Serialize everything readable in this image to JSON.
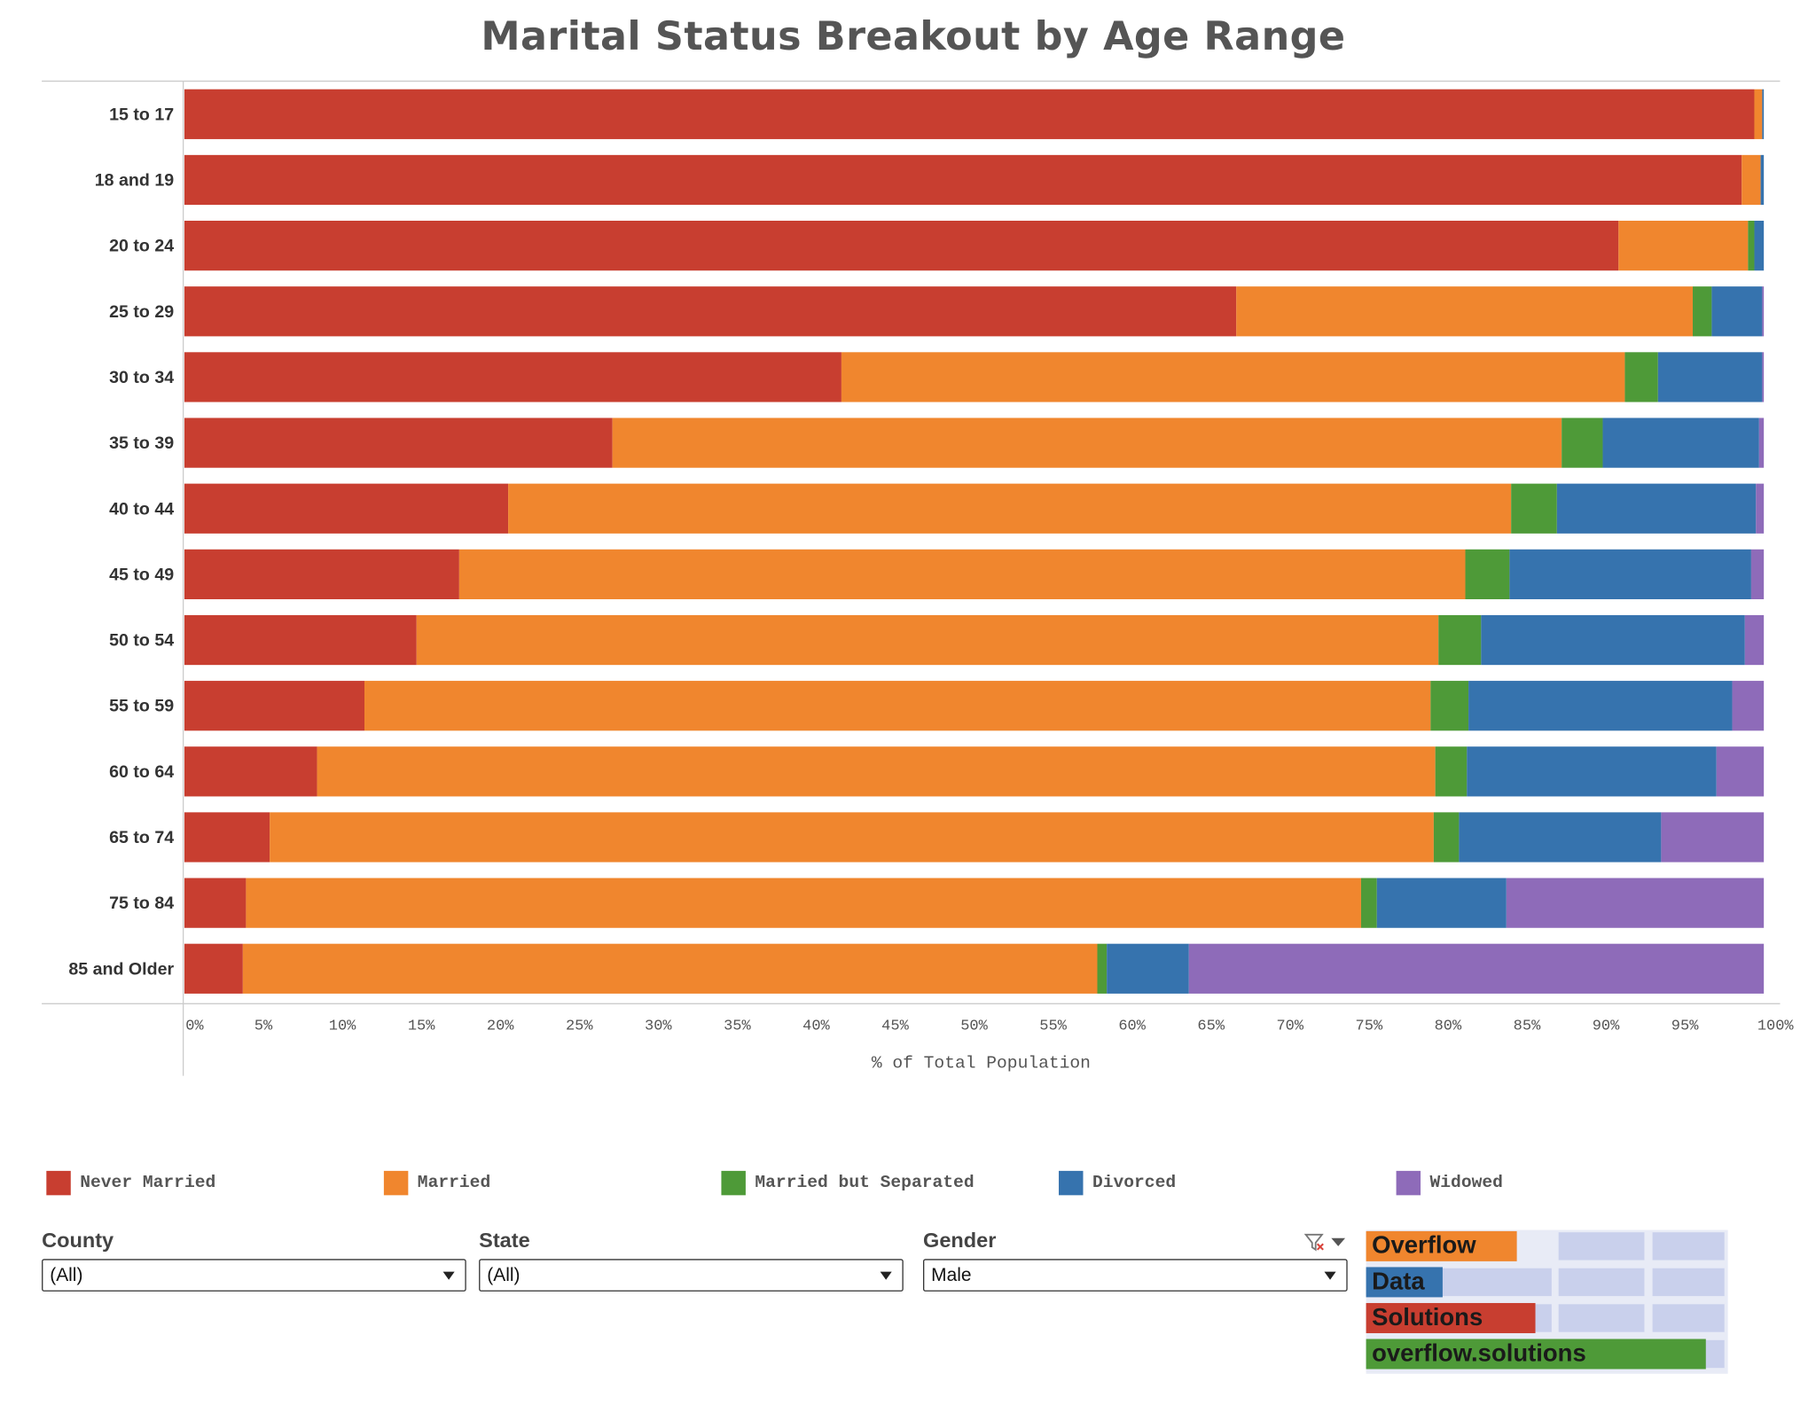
{
  "chart_data": {
    "type": "bar",
    "orientation": "horizontal",
    "stacked": true,
    "normalized": true,
    "title": "Marital Status Breakout by Age Range",
    "xlabel": "% of Total Population",
    "ylabel": "",
    "xlim": [
      0,
      100
    ],
    "xticks": [
      "0%",
      "5%",
      "10%",
      "15%",
      "20%",
      "25%",
      "30%",
      "35%",
      "40%",
      "45%",
      "50%",
      "55%",
      "60%",
      "65%",
      "70%",
      "75%",
      "80%",
      "85%",
      "90%",
      "95%",
      "100%"
    ],
    "grid": false,
    "legend_position": "bottom",
    "categories": [
      "15 to 17",
      "18 and 19",
      "20 to 24",
      "25 to 29",
      "30 to 34",
      "35 to 39",
      "40 to 44",
      "45 to 49",
      "50 to 54",
      "55 to 59",
      "60 to 64",
      "65 to 74",
      "75 to 84",
      "85 and Older"
    ],
    "series": [
      {
        "name": "Never Married",
        "color": "#c83e30",
        "values": [
          99.4,
          98.6,
          90.8,
          66.6,
          41.6,
          27.1,
          20.5,
          17.4,
          14.7,
          11.4,
          8.4,
          5.4,
          3.9,
          3.7
        ]
      },
      {
        "name": "Married",
        "color": "#f0862e",
        "values": [
          0.5,
          1.2,
          8.2,
          28.9,
          49.6,
          60.1,
          63.5,
          63.7,
          64.7,
          67.5,
          70.8,
          73.7,
          70.6,
          54.1
        ]
      },
      {
        "name": "Married but Separated",
        "color": "#4e9a38",
        "values": [
          0.0,
          0.0,
          0.4,
          1.2,
          2.1,
          2.6,
          2.9,
          2.8,
          2.7,
          2.4,
          2.0,
          1.6,
          1.0,
          0.6
        ]
      },
      {
        "name": "Divorced",
        "color": "#3673ae",
        "values": [
          0.1,
          0.2,
          0.6,
          3.2,
          6.6,
          9.9,
          12.6,
          15.3,
          16.7,
          16.7,
          15.8,
          12.8,
          8.2,
          5.2
        ]
      },
      {
        "name": "Widowed",
        "color": "#8e6bb9",
        "values": [
          0.0,
          0.0,
          0.0,
          0.1,
          0.1,
          0.3,
          0.5,
          0.8,
          1.2,
          2.0,
          3.0,
          6.5,
          16.3,
          36.4
        ]
      }
    ]
  },
  "filters": [
    {
      "label": "County",
      "value": "(All)"
    },
    {
      "label": "State",
      "value": "(All)"
    },
    {
      "label": "Gender",
      "value": "Male"
    }
  ],
  "logo": {
    "line1": "Overflow",
    "line2": "Data",
    "line3": "Solutions",
    "line4": "overflow.solutions"
  },
  "icons": {
    "clear_filter": "filter-clear-icon",
    "filter_menu": "chevron-down-icon"
  }
}
